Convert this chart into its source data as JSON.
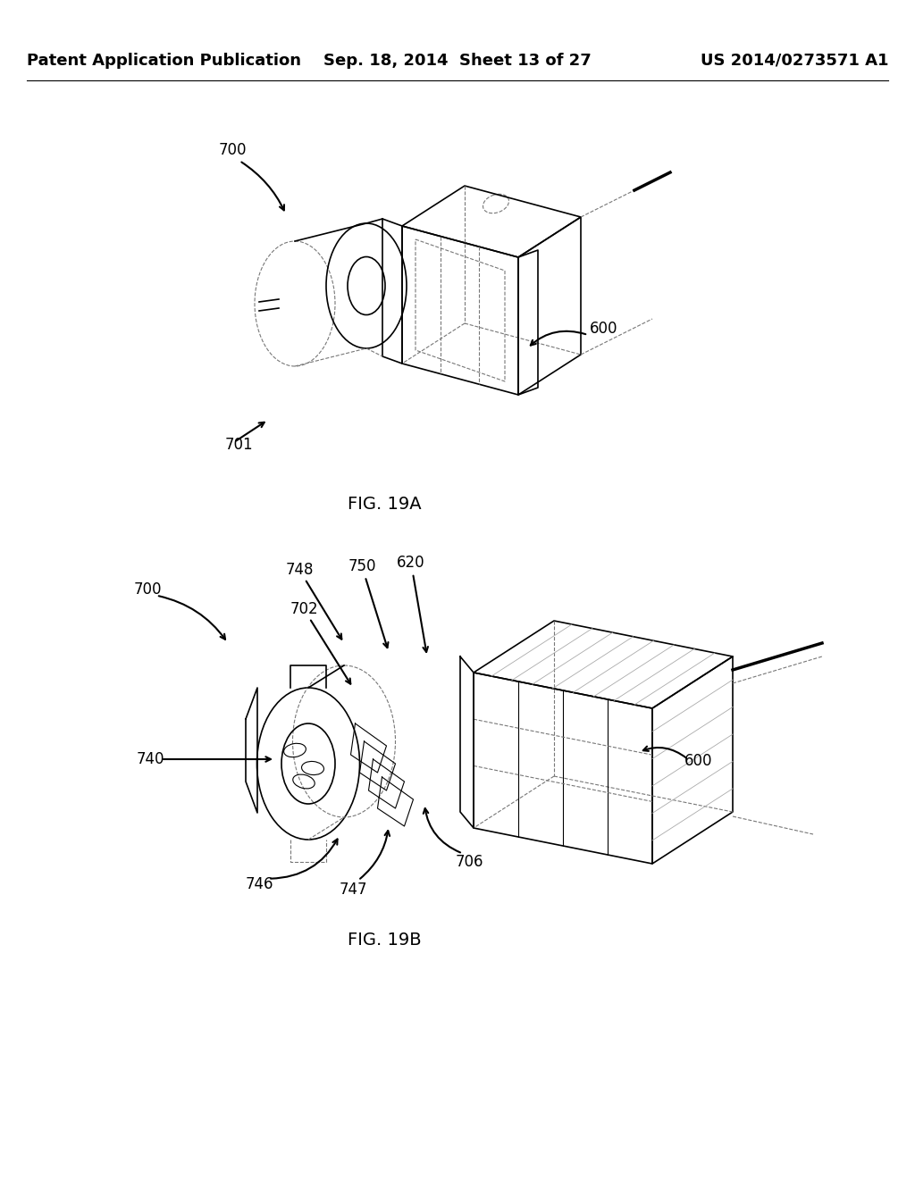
{
  "background_color": "#ffffff",
  "header": {
    "left_text": "Patent Application Publication",
    "center_text": "Sep. 18, 2014  Sheet 13 of 27",
    "right_text": "US 2014/0273571 A1",
    "fontsize": 13,
    "fontweight": "bold"
  },
  "fig19a_caption": "FIG. 19A",
  "fig19b_caption": "FIG. 19B",
  "caption_fontsize": 14,
  "label_fontsize": 12,
  "text_color": "#000000",
  "line_color": "#000000",
  "dashed_color": "#777777"
}
